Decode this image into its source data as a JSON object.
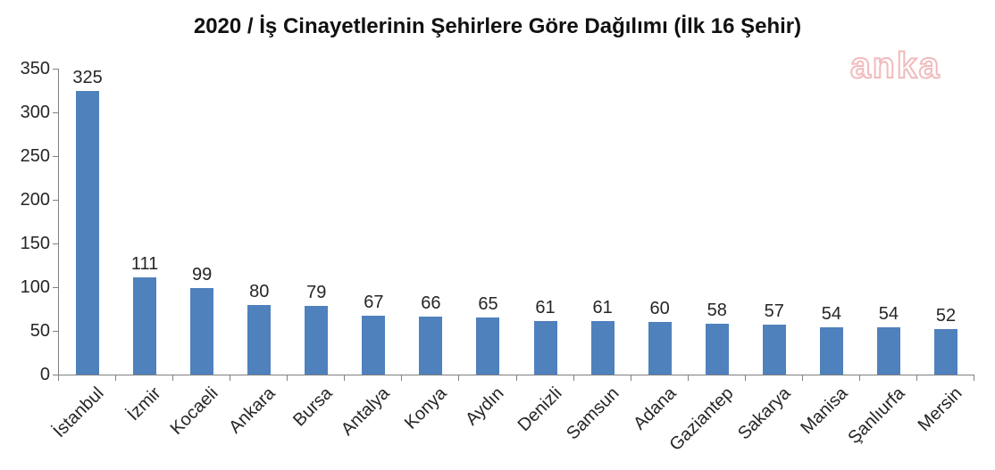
{
  "title": "2020 / İş Cinayetlerinin Şehirlere Göre Dağılımı (İlk 16 Şehir)",
  "watermark": "anka",
  "chart_data": {
    "type": "bar",
    "title": "2020 / İş Cinayetlerinin Şehirlere Göre Dağılımı (İlk 16 Şehir)",
    "categories": [
      "İstanbul",
      "İzmir",
      "Kocaeli",
      "Ankara",
      "Bursa",
      "Antalya",
      "Konya",
      "Aydın",
      "Denizli",
      "Samsun",
      "Adana",
      "Gaziantep",
      "Sakarya",
      "Manisa",
      "Şanlıurfa",
      "Mersin"
    ],
    "values": [
      325,
      111,
      99,
      80,
      79,
      67,
      66,
      65,
      61,
      61,
      60,
      58,
      57,
      54,
      54,
      52
    ],
    "xlabel": "",
    "ylabel": "",
    "ylim": [
      0,
      350
    ],
    "yticks": [
      0,
      50,
      100,
      150,
      200,
      250,
      300,
      350
    ],
    "grid": false,
    "legend": "none",
    "value_labels": true,
    "bar_color": "#4f81bd",
    "axis_color": "#808080",
    "label_color": "#262626"
  }
}
